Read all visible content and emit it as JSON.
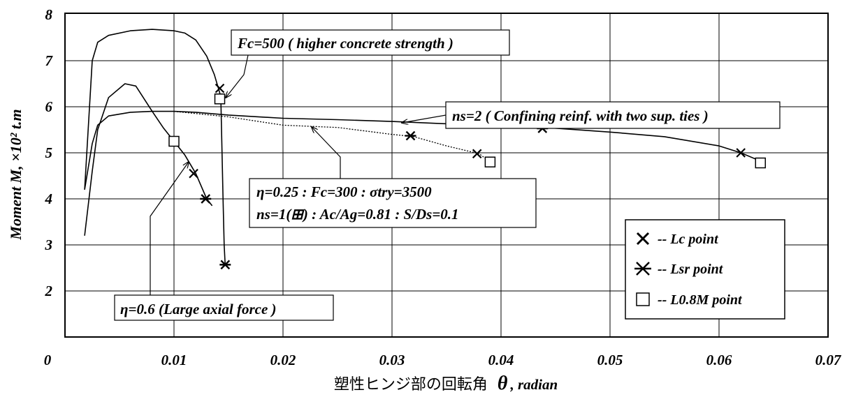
{
  "chart_data": {
    "type": "line",
    "xlabel_prefix": "塑性ヒンジ部の回転角",
    "xlabel_symbol": "θ",
    "xlabel_suffix": ", radian",
    "ylabel": "Moment  M, ×10² t.m",
    "xlim": [
      0,
      0.07
    ],
    "ylim": [
      1,
      8
    ],
    "x_ticks": [
      "0",
      "0.01",
      "0.02",
      "0.03",
      "0.04",
      "0.05",
      "0.06",
      "0.07"
    ],
    "y_ticks": [
      "2",
      "3",
      "4",
      "5",
      "6",
      "7",
      "8"
    ],
    "grid": true,
    "series": [
      {
        "style": "solid",
        "values": [
          [
            0.0018,
            4.2
          ],
          [
            0.0025,
            7.0
          ],
          [
            0.003,
            7.4
          ],
          [
            0.004,
            7.55
          ],
          [
            0.006,
            7.65
          ],
          [
            0.008,
            7.68
          ],
          [
            0.01,
            7.65
          ],
          [
            0.011,
            7.6
          ],
          [
            0.012,
            7.45
          ],
          [
            0.013,
            7.1
          ],
          [
            0.0137,
            6.7
          ],
          [
            0.0142,
            6.3
          ],
          [
            0.0143,
            6.15
          ],
          [
            0.0145,
            4.0
          ],
          [
            0.0146,
            3.0
          ],
          [
            0.0147,
            2.55
          ]
        ]
      },
      {
        "style": "solid",
        "values": [
          [
            0.0018,
            3.2
          ],
          [
            0.0025,
            4.6
          ],
          [
            0.003,
            5.5
          ],
          [
            0.004,
            6.2
          ],
          [
            0.0055,
            6.5
          ],
          [
            0.0065,
            6.45
          ],
          [
            0.008,
            5.9
          ],
          [
            0.009,
            5.55
          ],
          [
            0.01,
            5.25
          ],
          [
            0.011,
            4.95
          ],
          [
            0.012,
            4.55
          ],
          [
            0.013,
            4.0
          ],
          [
            0.0135,
            3.85
          ]
        ]
      },
      {
        "style": "solid",
        "values": [
          [
            0.0018,
            4.2
          ],
          [
            0.0025,
            5.2
          ],
          [
            0.003,
            5.6
          ],
          [
            0.004,
            5.8
          ],
          [
            0.006,
            5.88
          ],
          [
            0.008,
            5.9
          ],
          [
            0.01,
            5.9
          ],
          [
            0.012,
            5.88
          ],
          [
            0.015,
            5.82
          ],
          [
            0.02,
            5.75
          ],
          [
            0.025,
            5.72
          ],
          [
            0.03,
            5.68
          ],
          [
            0.035,
            5.63
          ],
          [
            0.04,
            5.6
          ],
          [
            0.044,
            5.55
          ],
          [
            0.05,
            5.45
          ],
          [
            0.055,
            5.35
          ],
          [
            0.06,
            5.15
          ],
          [
            0.062,
            5.0
          ],
          [
            0.064,
            4.8
          ]
        ]
      },
      {
        "style": "dotted",
        "values": [
          [
            0.01,
            5.9
          ],
          [
            0.015,
            5.78
          ],
          [
            0.02,
            5.6
          ],
          [
            0.025,
            5.55
          ],
          [
            0.03,
            5.4
          ],
          [
            0.032,
            5.35
          ],
          [
            0.035,
            5.15
          ],
          [
            0.038,
            4.98
          ],
          [
            0.039,
            4.8
          ]
        ]
      }
    ],
    "markers": {
      "lc": [
        [
          0.0142,
          6.4
        ],
        [
          0.0118,
          4.55
        ],
        [
          0.0378,
          4.98
        ],
        [
          0.062,
          5.0
        ]
      ],
      "lsr": [
        [
          0.0147,
          2.57
        ],
        [
          0.0129,
          4.0
        ],
        [
          0.0317,
          5.37
        ],
        [
          0.0438,
          5.53
        ]
      ],
      "l08m": [
        [
          0.0142,
          6.17
        ],
        [
          0.01,
          5.25
        ],
        [
          0.039,
          4.8
        ],
        [
          0.0638,
          4.78
        ]
      ]
    },
    "annotations": {
      "fc500": "Fc=500 ( higher concrete strength )",
      "ns2": "ns=2 ( Confining reinf. with two sup. ties )",
      "base_line1": "η=0.25 : Fc=300 : σtry=3500",
      "base_line2": "ns=1(⊞) : Ac/Ag=0.81 : S/Ds=0.1",
      "eta06": "η=0.6 (Large axial force )"
    },
    "legend": {
      "placement": "bottom-right",
      "entries": [
        "-- Lc point",
        "-- Lsr point",
        "-- L0.8M point"
      ]
    }
  }
}
